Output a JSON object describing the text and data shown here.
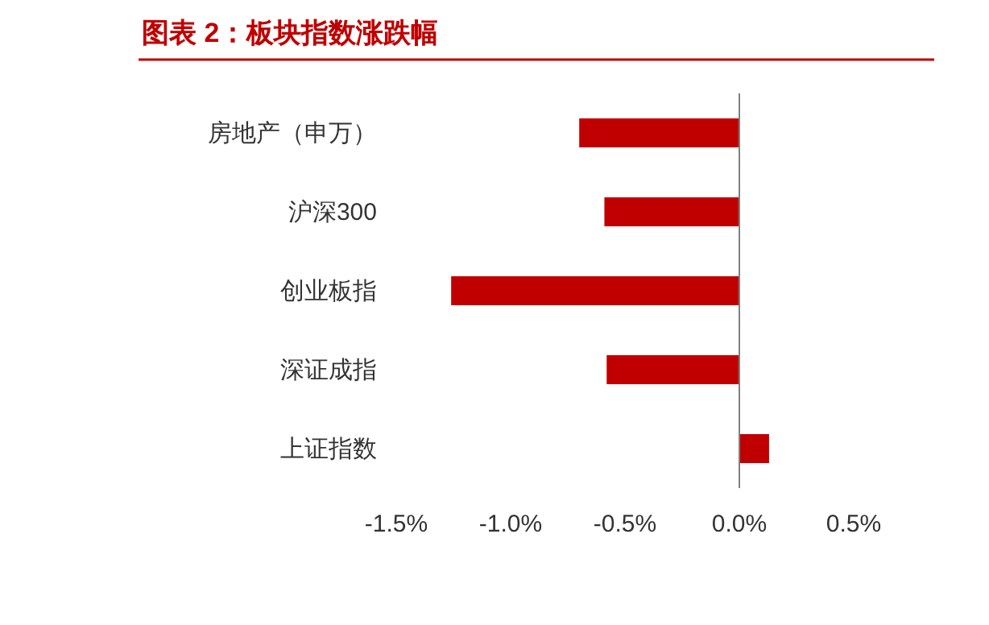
{
  "chart_data": {
    "type": "bar",
    "orientation": "horizontal",
    "title": "图表 2：板块指数涨跌幅",
    "categories": [
      "房地产（申万）",
      "沪深300",
      "创业板指",
      "深证成指",
      "上证指数"
    ],
    "values": [
      -0.7,
      -0.59,
      -1.26,
      -0.58,
      0.13
    ],
    "color": "#c00000",
    "xlim": [
      -1.5,
      0.5
    ],
    "xticks": [
      {
        "value": -1.5,
        "label": "-1.5%"
      },
      {
        "value": -1.0,
        "label": "-1.0%"
      },
      {
        "value": -0.5,
        "label": "-0.5%"
      },
      {
        "value": 0.0,
        "label": "0.0%"
      },
      {
        "value": 0.5,
        "label": "0.5%"
      }
    ]
  }
}
